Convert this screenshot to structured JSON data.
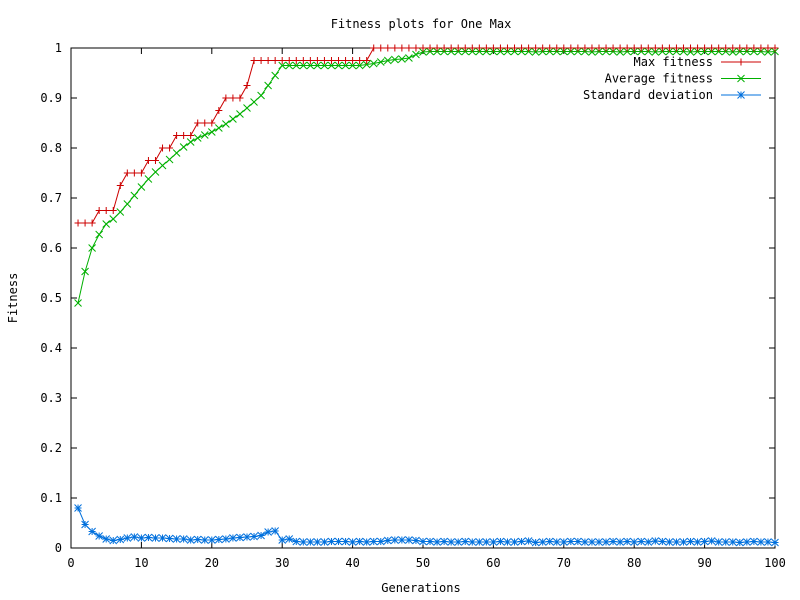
{
  "chart_data": {
    "type": "line",
    "title": "Fitness plots for One Max",
    "xlabel": "Generations",
    "ylabel": "Fitness",
    "xlim": [
      0,
      100
    ],
    "ylim": [
      0,
      1
    ],
    "x_ticks": [
      "0",
      "10",
      "20",
      "30",
      "40",
      "50",
      "60",
      "70",
      "80",
      "90",
      "100"
    ],
    "y_ticks": [
      "0",
      "0.1",
      "0.2",
      "0.3",
      "0.4",
      "0.5",
      "0.6",
      "0.7",
      "0.8",
      "0.9",
      "1"
    ],
    "grid": false,
    "legend_position": "top-right",
    "x": [
      1,
      2,
      3,
      4,
      5,
      6,
      7,
      8,
      9,
      10,
      11,
      12,
      13,
      14,
      15,
      16,
      17,
      18,
      19,
      20,
      21,
      22,
      23,
      24,
      25,
      26,
      27,
      28,
      29,
      30,
      31,
      32,
      33,
      34,
      35,
      36,
      37,
      38,
      39,
      40,
      41,
      42,
      43,
      44,
      45,
      46,
      47,
      48,
      49,
      50,
      51,
      52,
      53,
      54,
      55,
      56,
      57,
      58,
      59,
      60,
      61,
      62,
      63,
      64,
      65,
      66,
      67,
      68,
      69,
      70,
      71,
      72,
      73,
      74,
      75,
      76,
      77,
      78,
      79,
      80,
      81,
      82,
      83,
      84,
      85,
      86,
      87,
      88,
      89,
      90,
      91,
      92,
      93,
      94,
      95,
      96,
      97,
      98,
      99,
      100
    ],
    "series": [
      {
        "name": "Max fitness",
        "color": "#cc0000",
        "marker": "plus",
        "values": [
          0.65,
          0.65,
          0.65,
          0.675,
          0.675,
          0.675,
          0.725,
          0.75,
          0.75,
          0.75,
          0.775,
          0.775,
          0.8,
          0.8,
          0.825,
          0.825,
          0.825,
          0.85,
          0.85,
          0.85,
          0.875,
          0.9,
          0.9,
          0.9,
          0.925,
          0.975,
          0.975,
          0.975,
          0.975,
          0.975,
          0.975,
          0.975,
          0.975,
          0.975,
          0.975,
          0.975,
          0.975,
          0.975,
          0.975,
          0.975,
          0.975,
          0.975,
          1,
          1,
          1,
          1,
          1,
          1,
          1,
          1,
          1,
          1,
          1,
          1,
          1,
          1,
          1,
          1,
          1,
          1,
          1,
          1,
          1,
          1,
          1,
          1,
          1,
          1,
          1,
          1,
          1,
          1,
          1,
          1,
          1,
          1,
          1,
          1,
          1,
          1,
          1,
          1,
          1,
          1,
          1,
          1,
          1,
          1,
          1,
          1,
          1,
          1,
          1,
          1,
          1,
          1,
          1,
          1,
          1,
          1
        ]
      },
      {
        "name": "Average fitness",
        "color": "#00b000",
        "marker": "cross",
        "values": [
          0.49,
          0.553,
          0.6,
          0.627,
          0.648,
          0.658,
          0.672,
          0.688,
          0.705,
          0.722,
          0.738,
          0.752,
          0.765,
          0.777,
          0.79,
          0.802,
          0.812,
          0.82,
          0.826,
          0.832,
          0.84,
          0.848,
          0.858,
          0.868,
          0.88,
          0.892,
          0.905,
          0.925,
          0.945,
          0.965,
          0.965,
          0.965,
          0.965,
          0.965,
          0.965,
          0.965,
          0.965,
          0.965,
          0.965,
          0.965,
          0.965,
          0.967,
          0.969,
          0.972,
          0.975,
          0.977,
          0.978,
          0.98,
          0.987,
          0.992,
          0.993,
          0.993,
          0.993,
          0.993,
          0.993,
          0.993,
          0.993,
          0.993,
          0.993,
          0.993,
          0.993,
          0.993,
          0.993,
          0.993,
          0.993,
          0.992,
          0.993,
          0.993,
          0.993,
          0.993,
          0.993,
          0.993,
          0.993,
          0.992,
          0.993,
          0.993,
          0.993,
          0.992,
          0.993,
          0.993,
          0.993,
          0.993,
          0.992,
          0.993,
          0.993,
          0.993,
          0.993,
          0.992,
          0.993,
          0.993,
          0.993,
          0.993,
          0.993,
          0.992,
          0.993,
          0.993,
          0.993,
          0.993,
          0.992,
          0.993
        ]
      },
      {
        "name": "Standard deviation",
        "color": "#0070dd",
        "marker": "star",
        "values": [
          0.08,
          0.047,
          0.033,
          0.024,
          0.018,
          0.015,
          0.017,
          0.02,
          0.022,
          0.02,
          0.021,
          0.02,
          0.02,
          0.019,
          0.018,
          0.018,
          0.016,
          0.017,
          0.016,
          0.016,
          0.017,
          0.018,
          0.02,
          0.021,
          0.022,
          0.023,
          0.025,
          0.032,
          0.034,
          0.016,
          0.018,
          0.013,
          0.012,
          0.012,
          0.012,
          0.012,
          0.013,
          0.013,
          0.013,
          0.012,
          0.013,
          0.012,
          0.013,
          0.013,
          0.015,
          0.016,
          0.016,
          0.016,
          0.015,
          0.013,
          0.013,
          0.012,
          0.013,
          0.012,
          0.012,
          0.013,
          0.012,
          0.012,
          0.012,
          0.012,
          0.013,
          0.012,
          0.012,
          0.013,
          0.014,
          0.011,
          0.012,
          0.013,
          0.012,
          0.012,
          0.013,
          0.013,
          0.012,
          0.012,
          0.012,
          0.012,
          0.013,
          0.012,
          0.013,
          0.012,
          0.013,
          0.012,
          0.014,
          0.013,
          0.012,
          0.012,
          0.012,
          0.013,
          0.012,
          0.013,
          0.014,
          0.012,
          0.012,
          0.012,
          0.011,
          0.012,
          0.013,
          0.012,
          0.012,
          0.011
        ]
      }
    ]
  }
}
